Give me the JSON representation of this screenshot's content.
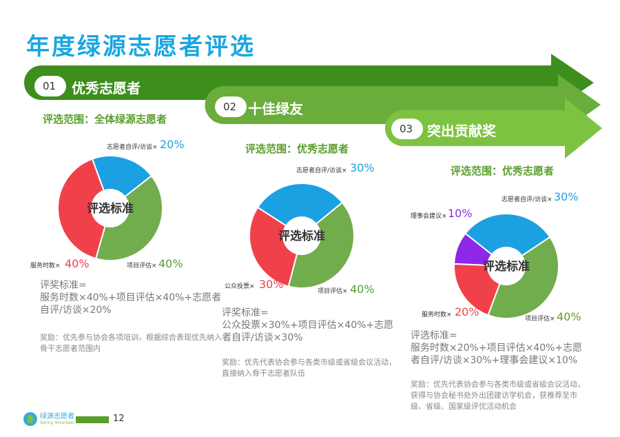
{
  "page_title": "年度绿源志愿者评选",
  "colors": {
    "green_dark": "#3e8e1e",
    "green_mid": "#6aad3a",
    "green_light": "#7ec242",
    "red": "#f0414a",
    "blue": "#1ba1e2",
    "purple": "#8f27e8",
    "pie_green": "#72ad4d"
  },
  "categories": [
    {
      "num": "01",
      "name": "优秀志愿者",
      "scope": "评选范围：全体绿源志愿者",
      "center": "评选标准",
      "segments": [
        {
          "label": "志愿者自评/访谈×",
          "pct": "20%",
          "value": 20,
          "color": "#1ba1e2"
        },
        {
          "label": "项目评估×",
          "pct": "40%",
          "value": 40,
          "color": "#72ad4d"
        },
        {
          "label": "服务时数×",
          "pct": "40%",
          "value": 40,
          "color": "#f0414a"
        }
      ],
      "formula_title": "评奖标准=",
      "formula": "服务时数×40%+项目评估×40%+志愿者自评/访谈×20%",
      "reward": "奖励：优先参与协会各项培训，根据综合表现优先纳入骨干志愿者范围内"
    },
    {
      "num": "02",
      "name": "十佳绿友",
      "scope": "评选范围：优秀志愿者",
      "center": "评选标准",
      "segments": [
        {
          "label": "志愿者自评/访谈×",
          "pct": "30%",
          "value": 30,
          "color": "#1ba1e2"
        },
        {
          "label": "项目评估×",
          "pct": "40%",
          "value": 40,
          "color": "#72ad4d"
        },
        {
          "label": "公众投票×",
          "pct": "30%",
          "value": 30,
          "color": "#f0414a"
        }
      ],
      "formula_title": "评奖标准=",
      "formula": "公众投票×30%+项目评估×40%+志愿者自评/访谈×30%",
      "reward": "奖励：优先代表协会参与各类市级或省级会议活动，直接纳入骨干志愿者队伍"
    },
    {
      "num": "03",
      "name": "突出贡献奖",
      "scope": "评选范围：优秀志愿者",
      "center": "评选标准",
      "segments": [
        {
          "label": "志愿者自评/访谈×",
          "pct": "30%",
          "value": 30,
          "color": "#1ba1e2"
        },
        {
          "label": "项目评估×",
          "pct": "40%",
          "value": 40,
          "color": "#72ad4d"
        },
        {
          "label": "服务时数×",
          "pct": "20%",
          "value": 20,
          "color": "#f0414a"
        },
        {
          "label": "理事会建议×",
          "pct": "10%",
          "value": 10,
          "color": "#8f27e8"
        }
      ],
      "formula_title": "评选标准=",
      "formula": "服务时数×20%+项目评估×40%+志愿者自评/访谈×30%+理事会建议×10%",
      "reward": "奖励：优先代表协会参与各类市级或省级会议活动，获得与协会秘书处外出团建访学机会，获推荐至市级、省级、国家级评优活动机会"
    }
  ],
  "footer": {
    "logo_cn": "绿源志愿者",
    "logo_en": "Spring Volunteer",
    "page": "12"
  }
}
